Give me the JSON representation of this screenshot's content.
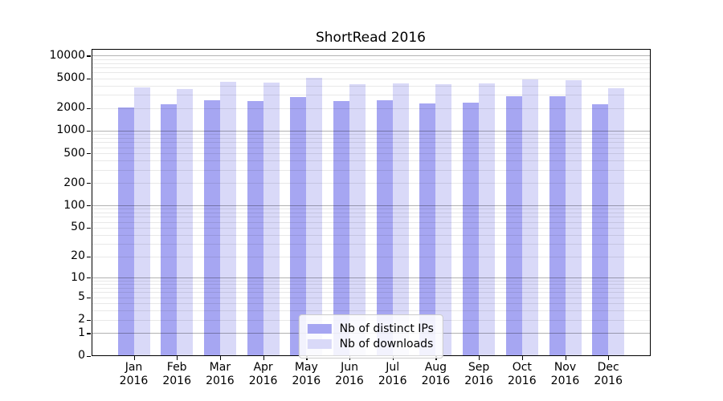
{
  "chart_data": {
    "type": "bar",
    "title": "ShortRead 2016",
    "categories": [
      "Jan 2016",
      "Feb 2016",
      "Mar 2016",
      "Apr 2016",
      "May 2016",
      "Jun 2016",
      "Jul 2016",
      "Aug 2016",
      "Sep 2016",
      "Oct 2016",
      "Nov 2016",
      "Dec 2016"
    ],
    "series": [
      {
        "name": "Nb of distinct IPs",
        "color": "#a6a6f2",
        "values": [
          2050,
          2280,
          2540,
          2500,
          2790,
          2470,
          2520,
          2290,
          2390,
          2870,
          2870,
          2240
        ]
      },
      {
        "name": "Nb of downloads",
        "color": "#d9d9f8",
        "values": [
          3750,
          3640,
          4480,
          4380,
          5020,
          4150,
          4300,
          4130,
          4270,
          4800,
          4700,
          3730
        ]
      }
    ],
    "xlabel": "",
    "ylabel": "",
    "yscale": "log1p",
    "yticks": [
      0,
      1,
      2,
      5,
      10,
      20,
      50,
      100,
      200,
      500,
      1000,
      2000,
      5000,
      10000
    ],
    "ylim": [
      0,
      12500
    ],
    "grid": "major decades dark, minor 2-9 multiples light, drawn over bars",
    "legend_position": "lower center"
  },
  "style": {
    "background": "#ffffff",
    "axis_color": "#000000",
    "major_grid_color": "rgba(0,0,0,0.30)",
    "minor_grid_color": "rgba(0,0,0,0.09)",
    "legend_border_color": "#cccccc"
  }
}
